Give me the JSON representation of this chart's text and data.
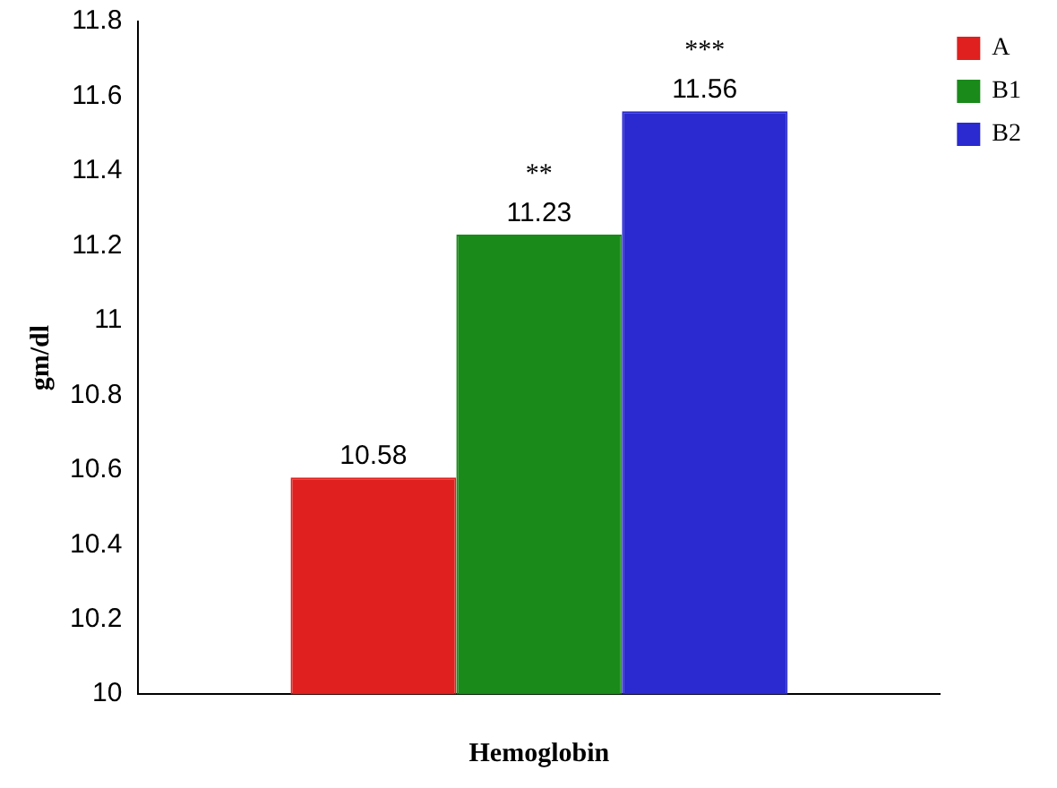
{
  "chart_data": {
    "type": "bar",
    "xlabel": "Hemoglobin",
    "ylabel": "gm/dl",
    "categories": [
      null
    ],
    "series": [
      {
        "name": "A",
        "color": "#e0201e",
        "values": [
          10.58
        ]
      },
      {
        "name": "B1",
        "color": "#1a8a1a",
        "values": [
          11.23
        ]
      },
      {
        "name": "B2",
        "color": "#2a2ad0",
        "values": [
          11.56
        ]
      }
    ],
    "ylim": [
      10,
      11.8
    ],
    "yticks": [
      10,
      10.2,
      10.4,
      10.6,
      10.8,
      11,
      11.2,
      11.4,
      11.6,
      11.8
    ],
    "data_labels": true,
    "legend": "top right",
    "grid": false,
    "annotations": [
      "**",
      "***"
    ]
  }
}
